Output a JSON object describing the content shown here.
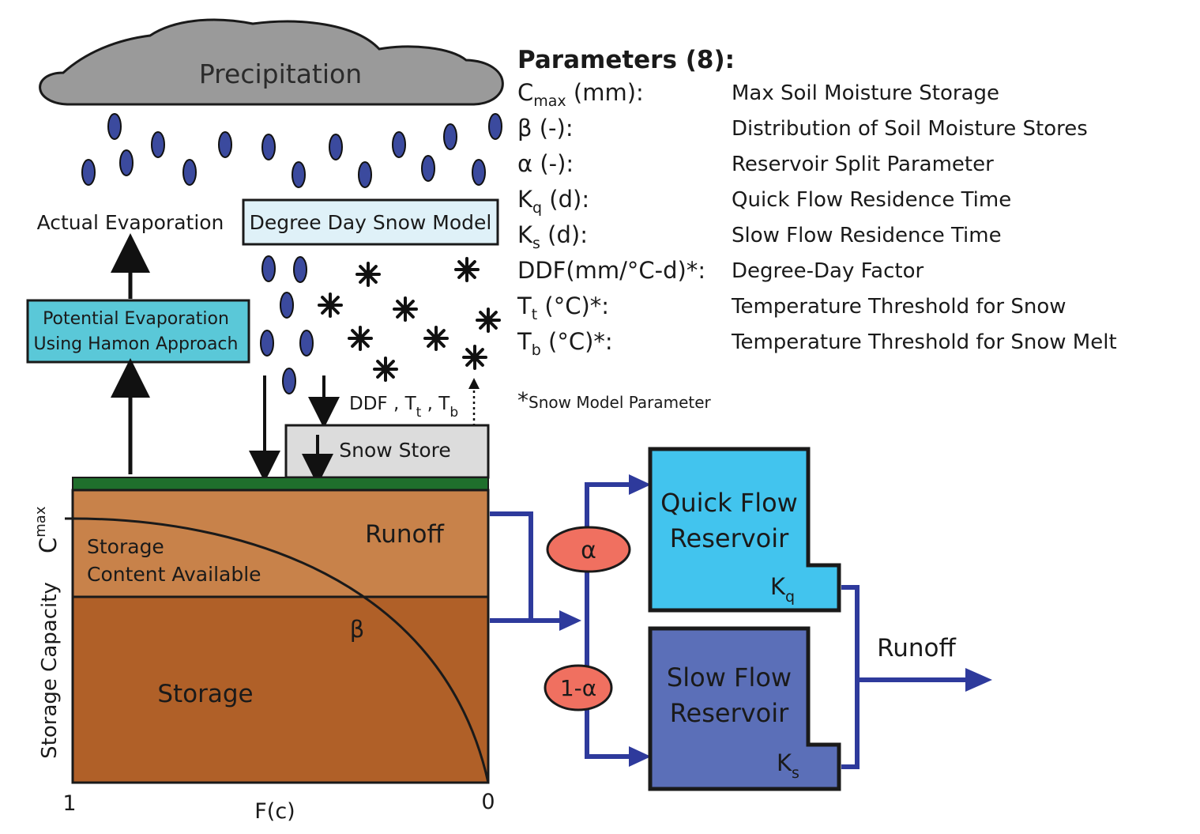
{
  "precipitation": {
    "label": "Precipitation"
  },
  "evaporation": {
    "actual_label": "Actual Evaporation",
    "potential_line1": "Potential Evaporation",
    "potential_line2": "Using Hamon Approach"
  },
  "snow": {
    "model_label": "Degree Day Snow Model",
    "store_label": "Snow Store",
    "ddf": "DDF",
    "t": "T",
    "sub_t": "t",
    "sub_b": "b"
  },
  "soil": {
    "runoff_label": "Runoff",
    "storage_line1": "Storage",
    "storage_line2": "Content Available",
    "storage_label": "Storage",
    "beta": "β",
    "axis_label": "Storage Capacity",
    "cmax_c": "C",
    "cmax_sub": "max",
    "x_label": "F(c)",
    "x_left": "1",
    "x_right": "0"
  },
  "routing": {
    "alpha": "α",
    "one_minus_alpha": "1-α",
    "quick_line1": "Quick Flow",
    "quick_line2": "Reservoir",
    "quick_k": "K",
    "quick_sub": "q",
    "slow_line1": "Slow Flow",
    "slow_line2": "Reservoir",
    "slow_k": "K",
    "slow_sub": "s",
    "runoff_out": "Runoff"
  },
  "parameters": {
    "title": "Parameters (8):",
    "rows": [
      {
        "sym": "C",
        "sub": "max",
        "rest": " (mm):",
        "desc": "Max Soil Moisture Storage"
      },
      {
        "sym": "β (-):",
        "sub": "",
        "rest": "",
        "desc": "Distribution of Soil Moisture Stores"
      },
      {
        "sym": "α (-):",
        "sub": "",
        "rest": "",
        "desc": "Reservoir Split Parameter"
      },
      {
        "sym": "K",
        "sub": "q",
        "rest": " (d):",
        "desc": "Quick Flow Residence Time"
      },
      {
        "sym": "K",
        "sub": "s",
        "rest": " (d):",
        "desc": "Slow Flow Residence Time"
      },
      {
        "sym": "DDF(mm/°C-d)*:",
        "sub": "",
        "rest": "",
        "desc": "Degree-Day Factor"
      },
      {
        "sym": "T",
        "sub": "t",
        "rest": " (°C)*:",
        "desc": "Temperature Threshold for Snow"
      },
      {
        "sym": "T",
        "sub": "b",
        "rest": " (°C)*:",
        "desc": "Temperature Threshold for Snow Melt"
      }
    ],
    "footnote_star": "*",
    "footnote": "Snow Model Parameter"
  },
  "colors": {
    "cloud": "#9a9a9a",
    "raindrop": "#3b4a9e",
    "evap_box": "#5ac8d8",
    "snow_model_box": "#dff1f8",
    "snow_store_box": "#dcdcdc",
    "vegetation": "#1f6f2c",
    "soil_top": "#c8824a",
    "soil_bottom": "#b06028",
    "quick_reservoir": "#42c4ee",
    "slow_reservoir": "#5b6fb8",
    "flow_arrow": "#2e3a9c",
    "split_ellipse": "#f07060"
  }
}
